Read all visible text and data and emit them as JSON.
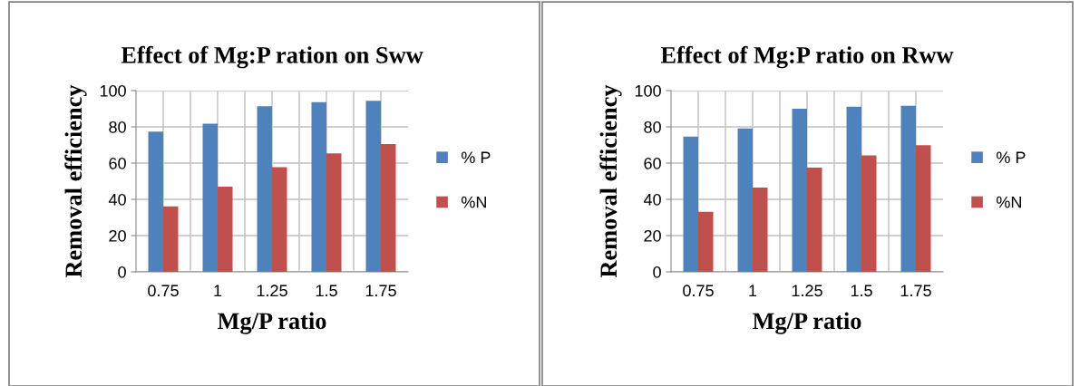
{
  "chart_data": [
    {
      "type": "bar",
      "title": "Effect of Mg:P ration on Sww",
      "xlabel": "Mg/P ratio",
      "ylabel": "Removal efficiency",
      "categories": [
        "0.75",
        "1",
        "1.25",
        "1.5",
        "1.75"
      ],
      "series": [
        {
          "name": "% P",
          "color": "#4f81bd",
          "values": [
            77.4,
            81.7,
            91.4,
            93.6,
            94.4
          ]
        },
        {
          "name": "%N",
          "color": "#c0504d",
          "values": [
            36.1,
            47,
            57.7,
            65.4,
            70.5
          ]
        }
      ],
      "ylim": [
        0,
        100
      ],
      "yticks": [
        0,
        20,
        40,
        60,
        80,
        100
      ],
      "grid": true,
      "legend": "right"
    },
    {
      "type": "bar",
      "title": "Effect of Mg:P ratio on Rww",
      "xlabel": "Mg/P ratio",
      "ylabel": "Removal efficiency",
      "categories": [
        "0.75",
        "1",
        "1.25",
        "1.5",
        "1.75"
      ],
      "series": [
        {
          "name": "% P",
          "color": "#4f81bd",
          "values": [
            74.6,
            79.1,
            90,
            91.1,
            91.6
          ]
        },
        {
          "name": "%N",
          "color": "#c0504d",
          "values": [
            33.1,
            46.5,
            57.5,
            64.3,
            69.9
          ]
        }
      ],
      "ylim": [
        0,
        100
      ],
      "yticks": [
        0,
        20,
        40,
        60,
        80,
        100
      ],
      "grid": true,
      "legend": "right"
    }
  ]
}
